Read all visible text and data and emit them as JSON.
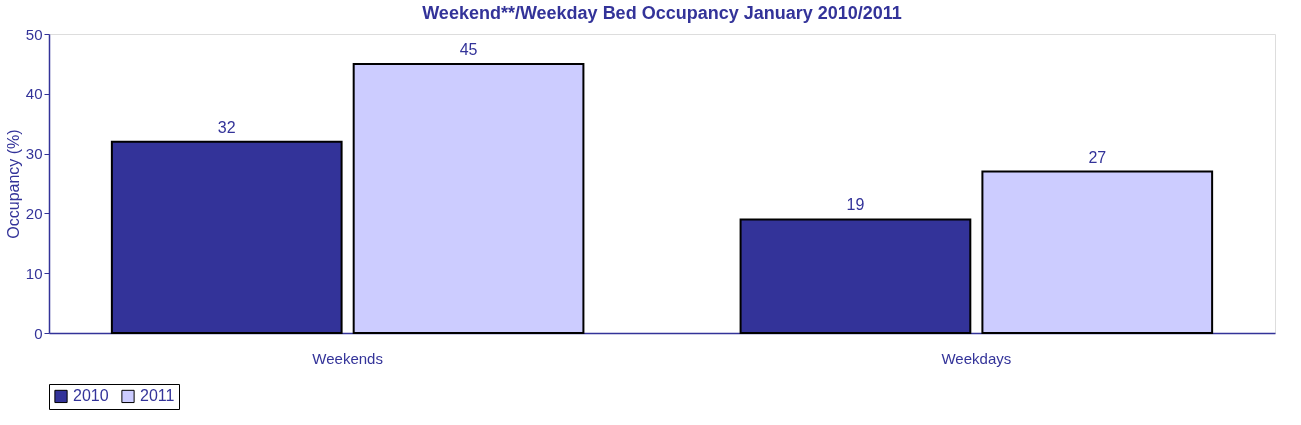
{
  "chart_data": {
    "type": "bar",
    "title": "Weekend**/Weekday Bed Occupancy January 2010/2011",
    "ylabel": "Occupancy (%)",
    "categories": [
      "Weekends",
      "Weekdays"
    ],
    "series": [
      {
        "name": "2010",
        "color": "#333399",
        "values": [
          32,
          19
        ]
      },
      {
        "name": "2011",
        "color": "#ccccff",
        "values": [
          45,
          27
        ]
      }
    ],
    "ylim": [
      0,
      50
    ],
    "yticks": [
      0,
      10,
      20,
      30,
      40,
      50
    ],
    "grid": false,
    "legend": "bottom",
    "data_labels": true
  }
}
